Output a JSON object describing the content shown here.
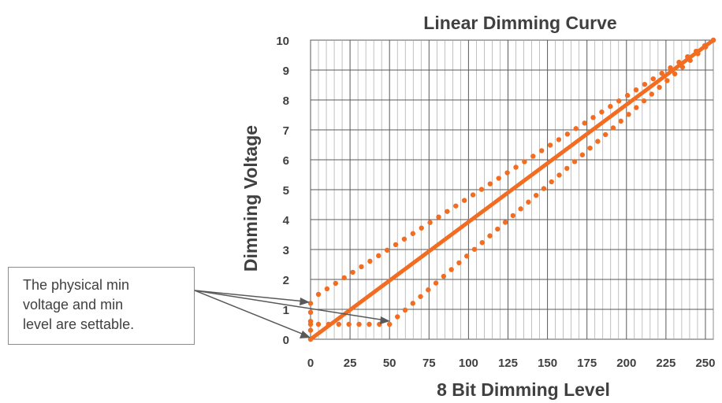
{
  "callout": {
    "line1": "The physical min",
    "line2": "voltage and min",
    "line3": "level are settable."
  },
  "colors": {
    "series": "#f26d21",
    "grid": "#595959",
    "text": "#404040",
    "arrow": "#595959"
  },
  "chart_data": {
    "type": "line",
    "title": "Linear Dimming Curve",
    "xlabel": "8 Bit Dimming Level",
    "ylabel": "Dimming Voltage",
    "xlim": [
      0,
      255
    ],
    "ylim": [
      0,
      10
    ],
    "xticks": [
      "0",
      "25",
      "50",
      "75",
      "100",
      "125",
      "150",
      "175",
      "200",
      "225",
      "250"
    ],
    "yticks": [
      "0",
      "1",
      "2",
      "3",
      "4",
      "5",
      "6",
      "7",
      "8",
      "9",
      "10"
    ],
    "grid": true,
    "legend": "none",
    "series": [
      {
        "style": "solid",
        "x": [
          0,
          255
        ],
        "y": [
          0,
          10
        ]
      },
      {
        "style": "dotted",
        "x": [
          0,
          0,
          5,
          255
        ],
        "y": [
          0,
          1.2,
          1.5,
          10
        ]
      },
      {
        "style": "dotted",
        "x": [
          0,
          0,
          5,
          50,
          55,
          255
        ],
        "y": [
          0,
          0.5,
          0.5,
          0.5,
          0.75,
          10
        ]
      }
    ]
  }
}
